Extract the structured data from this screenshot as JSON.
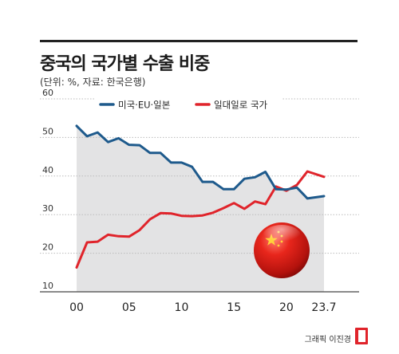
{
  "header": {
    "title": "중국의 국가별 수출 비중",
    "subtitle": "(단위: %, 자료: 한국은행)"
  },
  "credit": "그래픽 이진경",
  "colors": {
    "series_blue": "#1e5a8c",
    "series_red": "#e0242b",
    "plot_fill": "#e3e3e4",
    "grid": "#bbbbbb"
  },
  "chart_data": {
    "type": "line",
    "title": "중국의 국가별 수출 비중",
    "ylim": [
      10,
      60
    ],
    "xlim": [
      2000,
      2023.58
    ],
    "yticks": [
      10,
      20,
      30,
      40,
      50,
      60
    ],
    "xtick_labels": [
      {
        "x": 2000,
        "label": "00"
      },
      {
        "x": 2005,
        "label": "05"
      },
      {
        "x": 2010,
        "label": "10"
      },
      {
        "x": 2015,
        "label": "15"
      },
      {
        "x": 2020,
        "label": "20"
      },
      {
        "x": 2023.58,
        "label": "23.7"
      }
    ],
    "legend_position": "top-center",
    "shaded_series": "미국·EU·일본",
    "series": [
      {
        "name": "미국·EU·일본",
        "color": "#1e5a8c",
        "x": [
          2000,
          2001,
          2002,
          2003,
          2004,
          2005,
          2006,
          2007,
          2008,
          2009,
          2010,
          2011,
          2012,
          2013,
          2014,
          2015,
          2016,
          2017,
          2018,
          2019,
          2020,
          2021,
          2022,
          2023.58
        ],
        "values": [
          53.0,
          50.3,
          51.3,
          48.8,
          49.8,
          48.1,
          48.0,
          46.0,
          46.0,
          43.5,
          43.5,
          42.4,
          38.5,
          38.5,
          36.6,
          36.6,
          39.3,
          39.7,
          41.1,
          36.6,
          36.5,
          37.0,
          34.2,
          34.8
        ]
      },
      {
        "name": "일대일로 국가",
        "color": "#e0242b",
        "x": [
          2000,
          2001,
          2002,
          2003,
          2004,
          2005,
          2006,
          2007,
          2008,
          2009,
          2010,
          2011,
          2012,
          2013,
          2014,
          2015,
          2016,
          2017,
          2018,
          2019,
          2020,
          2021,
          2022,
          2023.58
        ],
        "values": [
          16.3,
          22.8,
          23.0,
          24.8,
          24.4,
          24.3,
          26.0,
          28.8,
          30.4,
          30.3,
          29.7,
          29.6,
          29.8,
          30.5,
          31.7,
          33.0,
          31.5,
          33.4,
          32.7,
          37.3,
          36.2,
          37.7,
          41.2,
          39.8
        ]
      }
    ]
  }
}
